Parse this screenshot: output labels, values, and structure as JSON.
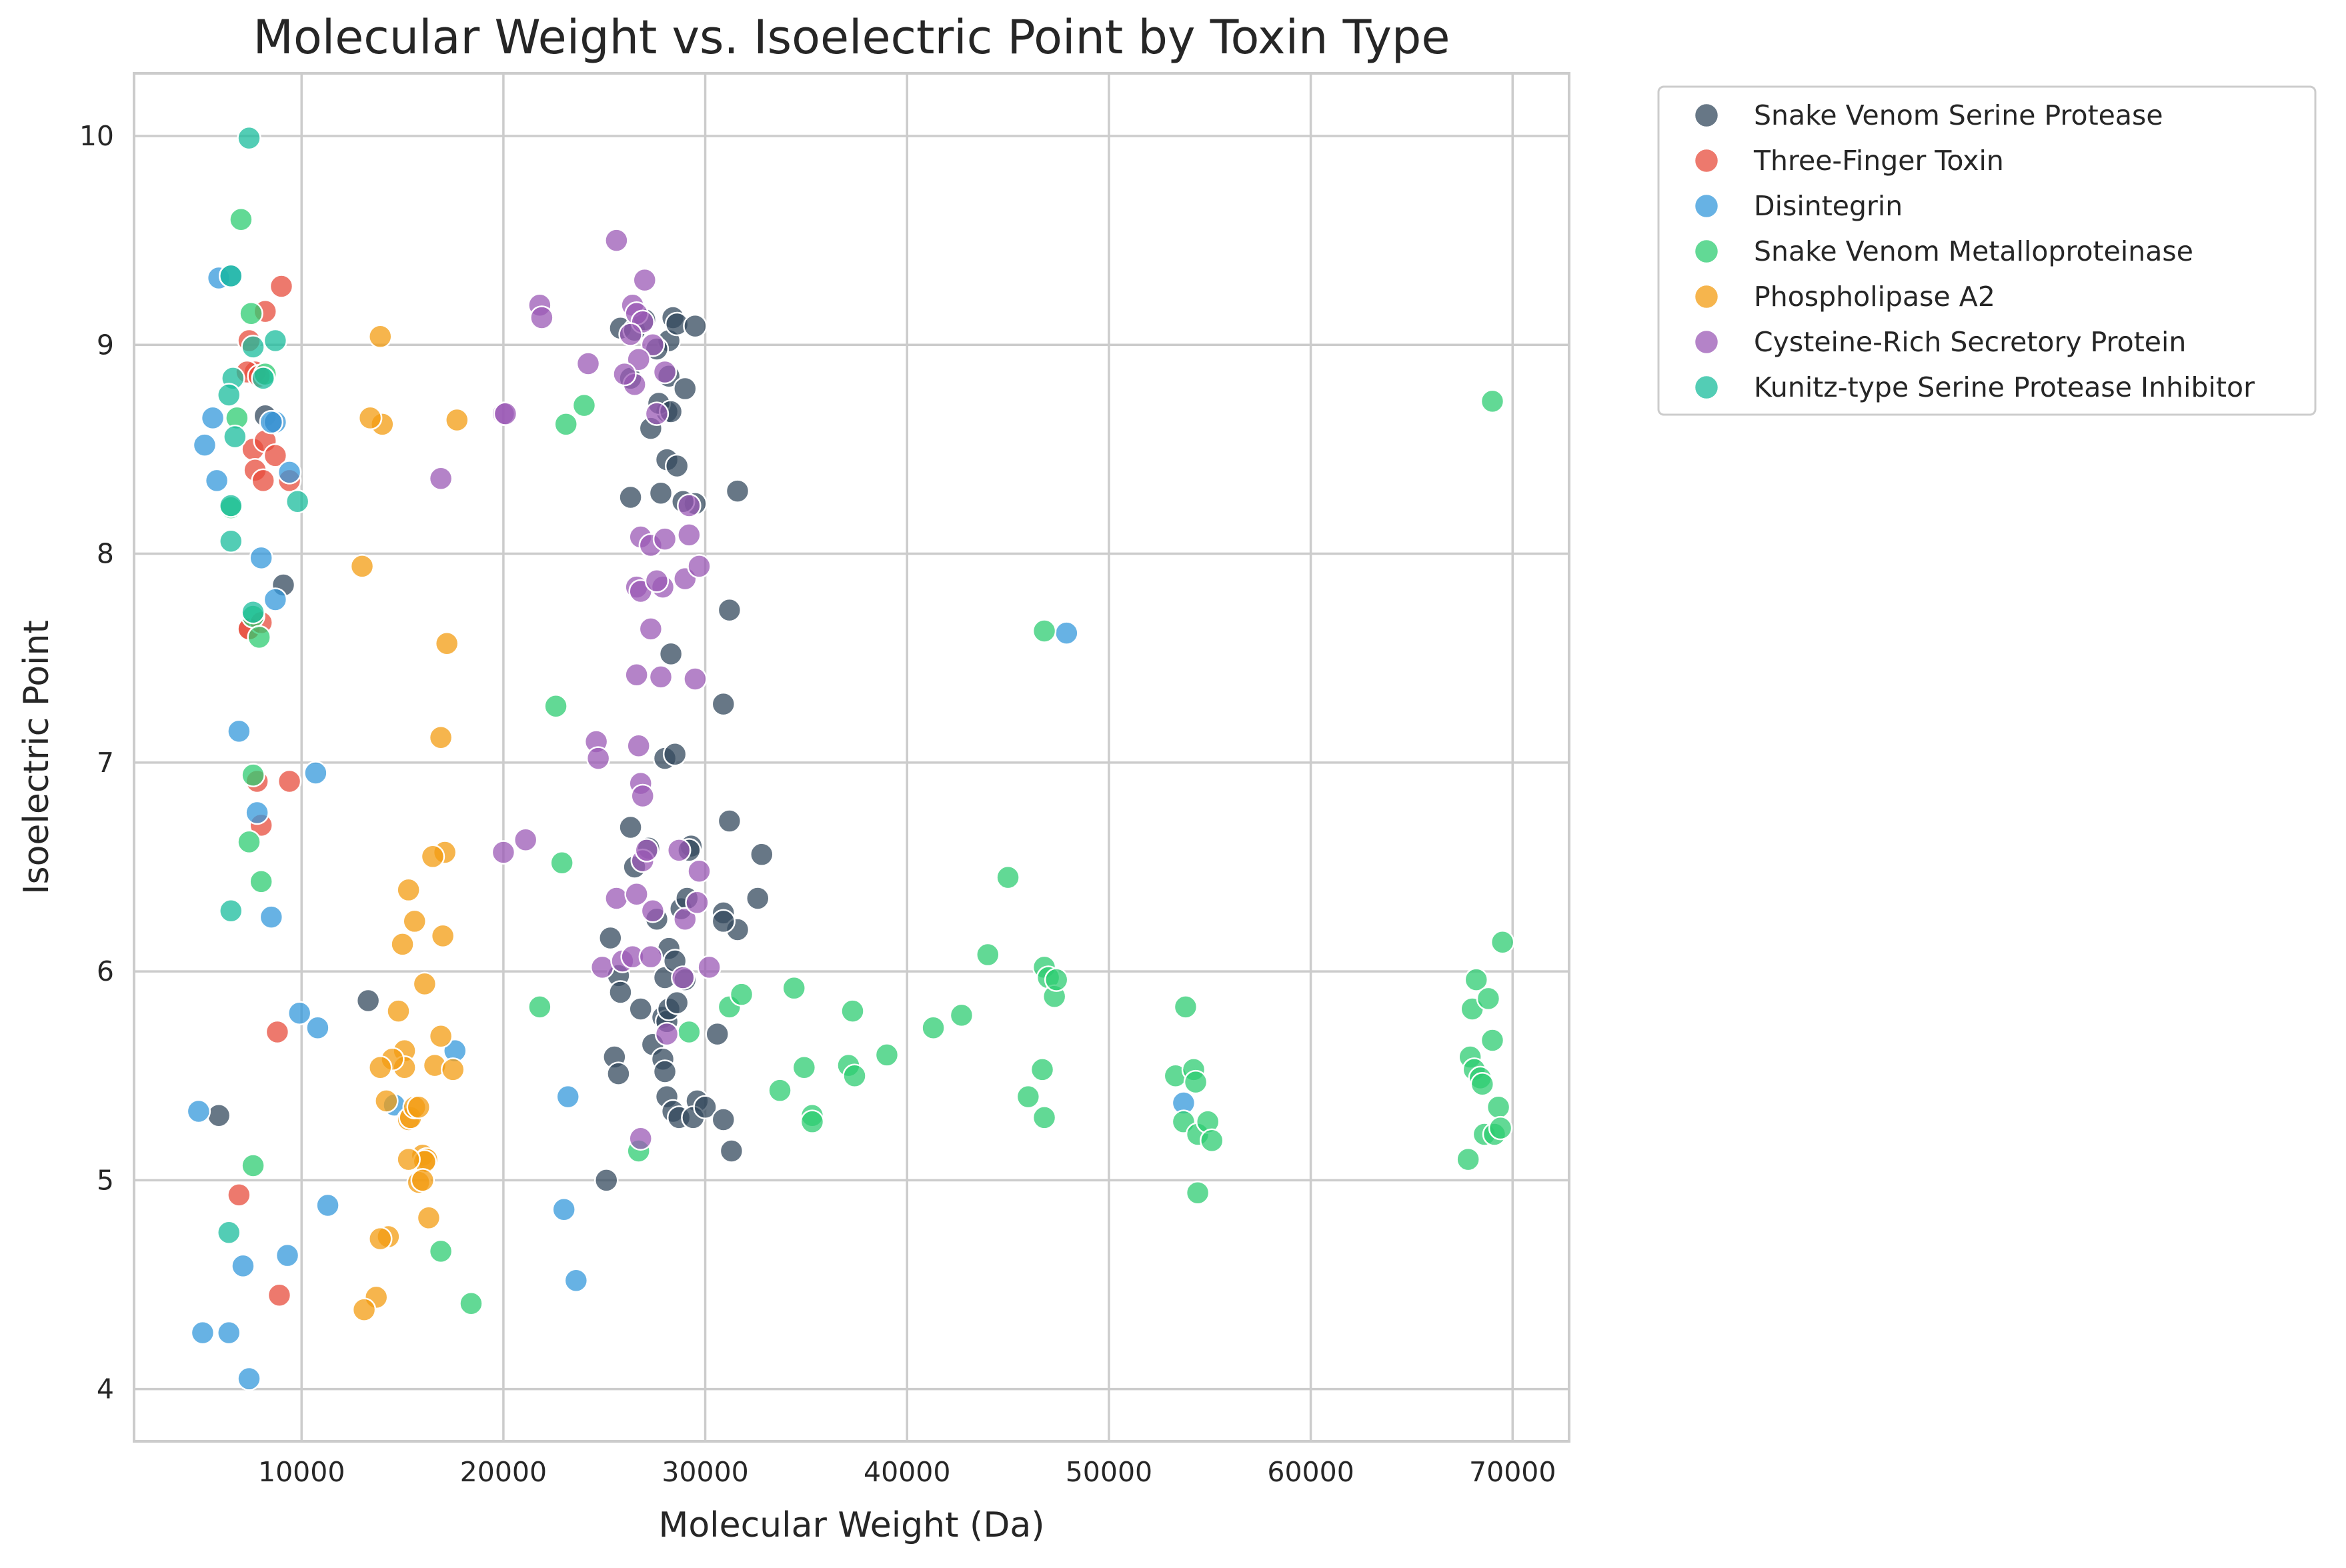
{
  "chart_data": {
    "type": "scatter",
    "title": "Molecular Weight vs. Isoelectric Point by Toxin Type",
    "xlabel": "Molecular Weight (Da)",
    "ylabel": "Isoelectric Point",
    "xlim": [
      1700,
      72800
    ],
    "ylim": [
      3.75,
      10.3
    ],
    "xticks": [
      10000,
      20000,
      30000,
      40000,
      50000,
      60000,
      70000
    ],
    "yticks": [
      4,
      5,
      6,
      7,
      8,
      9,
      10
    ],
    "grid": true,
    "legend_position": "outside-top-right",
    "series": [
      {
        "name": "Snake Venom Serine Protease",
        "color": "#34495e",
        "x": [
          8200,
          9100,
          5900,
          13300,
          25300,
          25700,
          26300,
          26500,
          27200,
          27600,
          28000,
          28200,
          28500,
          28800,
          29100,
          29300,
          25500,
          25800,
          27900,
          28100,
          28200,
          28600,
          29000,
          29600,
          30900,
          31200,
          32800,
          26800,
          27400,
          27900,
          28000,
          28100,
          28400,
          28700,
          29400,
          30000,
          30900,
          31300,
          31600,
          32600,
          28300,
          28000,
          28500,
          29200,
          30600,
          25700,
          26300,
          27300,
          27800,
          28100,
          28600,
          29500,
          30900,
          31600,
          25100,
          28100,
          28400,
          28200
        ],
        "y": [
          8.66,
          7.85,
          5.31,
          5.86,
          6.16,
          5.98,
          6.69,
          6.5,
          6.59,
          6.25,
          5.97,
          6.11,
          6.05,
          6.3,
          6.35,
          6.6,
          5.59,
          5.9,
          5.78,
          5.76,
          5.82,
          5.85,
          5.96,
          5.38,
          6.28,
          6.72,
          6.56,
          5.82,
          5.65,
          5.58,
          5.52,
          5.4,
          5.33,
          5.3,
          5.3,
          5.35,
          5.29,
          5.14,
          6.2,
          6.35,
          7.52,
          7.02,
          7.04,
          6.58,
          5.7,
          5.51,
          8.27,
          8.6,
          8.29,
          8.45,
          8.42,
          8.24,
          7.28,
          8.3,
          5.0,
          8.68,
          9.13,
          9.02
        ],
        "x2": [
          25800,
          26500,
          27000,
          27600,
          28200,
          28600,
          29000,
          29500,
          26300,
          27700,
          28300,
          28900,
          30900,
          31200
        ],
        "y2": [
          9.08,
          9.07,
          9.12,
          8.98,
          8.85,
          9.1,
          8.79,
          9.09,
          8.84,
          8.72,
          8.68,
          8.25,
          6.24,
          7.73
        ]
      },
      {
        "name": "Three-Finger Toxin",
        "color": "#e74c3c",
        "x": [
          7400,
          7700,
          8200,
          9000,
          7300,
          7900,
          7600,
          8200,
          8700,
          9400,
          7400,
          7700,
          8100,
          8600,
          7400,
          8000,
          7800,
          8000,
          9400,
          8800,
          6900,
          8900
        ],
        "y": [
          9.02,
          8.87,
          9.16,
          9.28,
          8.87,
          8.85,
          8.5,
          8.54,
          8.47,
          8.35,
          7.64,
          8.4,
          8.35,
          8.63,
          7.64,
          7.67,
          6.91,
          6.7,
          6.91,
          5.71,
          4.93,
          4.45
        ]
      },
      {
        "name": "Disintegrin",
        "color": "#3498db",
        "x": [
          5900,
          6500,
          5200,
          5800,
          8700,
          9400,
          8000,
          8700,
          6900,
          7800,
          10700,
          8500,
          9900,
          10800,
          17600,
          14600,
          23200,
          11300,
          9300,
          7100,
          6400,
          5100,
          23000,
          23600,
          7400,
          4900,
          47900,
          53700
        ],
        "y": [
          9.32,
          9.33,
          8.52,
          8.35,
          8.63,
          8.39,
          7.98,
          7.78,
          7.15,
          6.76,
          6.95,
          6.26,
          5.8,
          5.73,
          5.62,
          5.36,
          5.4,
          4.88,
          4.64,
          4.59,
          4.27,
          4.27,
          4.86,
          4.52,
          4.05,
          5.33,
          7.62,
          5.37
        ],
        "x3": [
          5600,
          8500
        ],
        "y3": [
          8.65,
          8.63
        ]
      },
      {
        "name": "Snake Venom Metalloproteinase",
        "color": "#2ecc71",
        "x": [
          7000,
          7500,
          8200,
          7600,
          6500,
          6800,
          7900,
          7600,
          7400,
          8000,
          7600,
          16900,
          18400,
          21800,
          22600,
          22900,
          23100,
          24000,
          26700,
          29200,
          31200,
          31800,
          33700,
          34400,
          34900,
          35300,
          35300,
          37100,
          37300,
          37400,
          39000,
          41300,
          42700,
          44000,
          45000,
          46000,
          46700,
          46800,
          46800,
          47000,
          47300,
          47400,
          53300,
          53800,
          53700,
          54200,
          54300,
          54400,
          54400,
          54900,
          55100,
          67900,
          68000,
          68100,
          68200,
          68400,
          68500,
          68600,
          68800,
          69000,
          69100,
          69300,
          69400,
          69500,
          67800,
          46800,
          69000
        ],
        "y": [
          9.6,
          9.15,
          8.86,
          7.7,
          8.22,
          8.65,
          7.6,
          6.94,
          6.62,
          6.43,
          5.07,
          4.66,
          4.41,
          5.83,
          7.27,
          6.52,
          8.62,
          8.71,
          5.14,
          5.71,
          5.83,
          5.89,
          5.43,
          5.92,
          5.54,
          5.31,
          5.28,
          5.55,
          5.81,
          5.5,
          5.6,
          5.73,
          5.79,
          6.08,
          6.45,
          5.4,
          5.53,
          5.3,
          6.02,
          5.97,
          5.88,
          5.96,
          5.5,
          5.83,
          5.28,
          5.53,
          5.47,
          4.94,
          5.22,
          5.28,
          5.19,
          5.59,
          5.82,
          5.53,
          5.96,
          5.49,
          5.46,
          5.22,
          5.87,
          5.67,
          5.22,
          5.35,
          5.25,
          6.14,
          5.1,
          7.63,
          8.73
        ]
      },
      {
        "name": "Phospholipase A2",
        "color": "#f39c12",
        "x": [
          13900,
          14000,
          13400,
          17700,
          13000,
          17200,
          16900,
          17100,
          16500,
          15300,
          15600,
          15000,
          17000,
          16100,
          14800,
          16900,
          15100,
          15100,
          14500,
          16600,
          17500,
          13900,
          14200,
          15300,
          15400,
          15600,
          15800,
          16000,
          16200,
          16100,
          15300,
          15800,
          16000,
          16300,
          14300,
          13900,
          13700,
          13100
        ],
        "y": [
          9.04,
          8.62,
          8.65,
          8.64,
          7.94,
          7.57,
          7.12,
          6.57,
          6.55,
          6.39,
          6.24,
          6.13,
          6.17,
          5.94,
          5.81,
          5.69,
          5.62,
          5.54,
          5.58,
          5.55,
          5.53,
          5.54,
          5.38,
          5.29,
          5.3,
          5.35,
          5.35,
          5.12,
          5.1,
          5.09,
          5.1,
          4.99,
          5.0,
          4.82,
          4.73,
          4.72,
          4.44,
          4.38
        ]
      },
      {
        "name": "Cysteine-Rich Secretory Protein",
        "color": "#9b59b6",
        "x": [
          25600,
          27000,
          21800,
          21900,
          26400,
          26600,
          26900,
          26300,
          27400,
          28000,
          26700,
          27600,
          26500,
          26000,
          24200,
          20000,
          20100,
          16900,
          29200,
          26800,
          27300,
          28000,
          29000,
          29200,
          26600,
          27900,
          26800,
          27600,
          29700,
          27300,
          27800,
          26600,
          29500,
          24600,
          24700,
          26700,
          26800,
          26900,
          21100,
          20000,
          25600,
          26600,
          26900,
          27100,
          27400,
          28700,
          29000,
          29600,
          29700,
          30200,
          24900,
          25900,
          26400,
          27300,
          28100,
          28900,
          26800
        ],
        "y": [
          9.5,
          9.31,
          9.19,
          9.13,
          9.19,
          9.15,
          9.11,
          9.05,
          9.0,
          8.87,
          8.93,
          8.67,
          8.81,
          8.86,
          8.91,
          8.67,
          8.67,
          8.36,
          8.23,
          8.08,
          8.04,
          8.07,
          7.88,
          8.09,
          7.84,
          7.84,
          7.82,
          7.87,
          7.94,
          7.64,
          7.41,
          7.42,
          7.4,
          7.1,
          7.02,
          7.08,
          6.9,
          6.84,
          6.63,
          6.57,
          6.35,
          6.37,
          6.53,
          6.58,
          6.29,
          6.58,
          6.25,
          6.33,
          6.48,
          6.02,
          6.02,
          6.05,
          6.07,
          6.07,
          5.7,
          5.97,
          5.2
        ]
      },
      {
        "name": "Kunitz-type Serine Protease Inhibitor",
        "color": "#1abc9c",
        "x": [
          7400,
          6500,
          7600,
          8100,
          8700,
          6600,
          6400,
          6700,
          6500,
          6500,
          9800,
          7600,
          6500,
          6400
        ],
        "y": [
          9.99,
          9.33,
          8.99,
          8.84,
          9.02,
          8.84,
          8.76,
          8.56,
          8.23,
          8.06,
          8.25,
          7.72,
          6.29,
          4.75
        ]
      }
    ]
  }
}
